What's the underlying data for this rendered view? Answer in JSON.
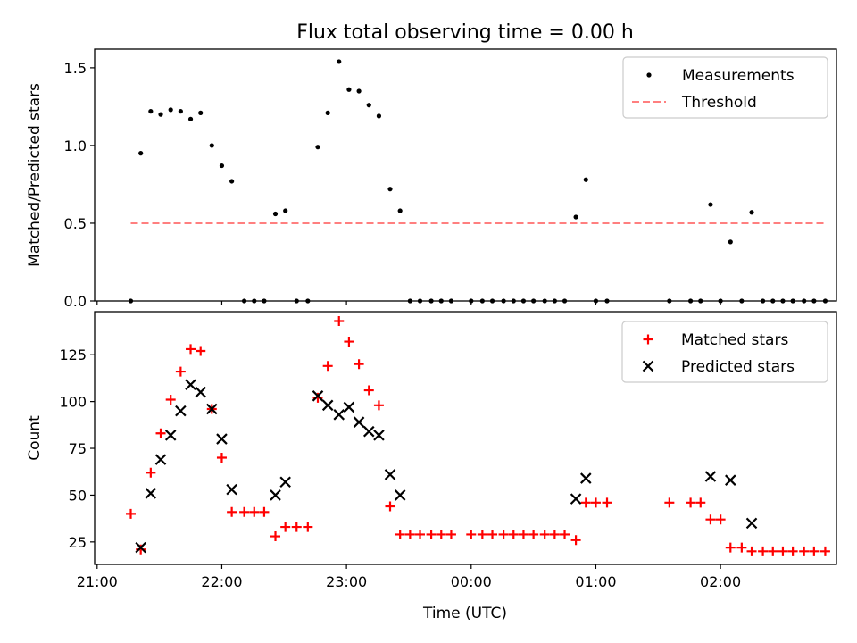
{
  "figure": {
    "title": "Flux total observing time = 0.00 h",
    "xlabel": "Time (UTC)"
  },
  "colors": {
    "measurement": "#000000",
    "threshold": "#ff7f7f",
    "matched": "#ff0000",
    "predicted": "#000000",
    "axes": "#000000",
    "legend_border": "#cccccc"
  },
  "chart_data": [
    {
      "type": "scatter",
      "title": "Flux total observing time = 0.00 h",
      "ylabel": "Matched/Predicted stars",
      "xlabel": "",
      "x_unit": "hours after 21:00 UTC",
      "xlim": [
        -0.02,
        5.93
      ],
      "ylim": [
        0,
        1.62
      ],
      "x_ticks": [
        0,
        1,
        2,
        3,
        4,
        5
      ],
      "x_ticklabels": [
        "21:00",
        "22:00",
        "23:00",
        "00:00",
        "01:00",
        "02:00"
      ],
      "y_ticks": [
        0.0,
        0.5,
        1.0,
        1.5
      ],
      "y_ticklabels": [
        "0.0",
        "0.5",
        "1.0",
        "1.5"
      ],
      "grid": false,
      "legend_position": "top-right",
      "series": [
        {
          "name": "Measurements",
          "marker": "dot",
          "points": [
            [
              0.27,
              0.0
            ],
            [
              0.35,
              0.95
            ],
            [
              0.43,
              1.22
            ],
            [
              0.51,
              1.2
            ],
            [
              0.59,
              1.23
            ],
            [
              0.67,
              1.22
            ],
            [
              0.75,
              1.17
            ],
            [
              0.83,
              1.21
            ],
            [
              0.92,
              1.0
            ],
            [
              1.0,
              0.87
            ],
            [
              1.08,
              0.77
            ],
            [
              1.18,
              0.0
            ],
            [
              1.26,
              0.0
            ],
            [
              1.34,
              0.0
            ],
            [
              1.43,
              0.56
            ],
            [
              1.51,
              0.58
            ],
            [
              1.6,
              0.0
            ],
            [
              1.69,
              0.0
            ],
            [
              1.77,
              0.99
            ],
            [
              1.85,
              1.21
            ],
            [
              1.94,
              1.54
            ],
            [
              2.02,
              1.36
            ],
            [
              2.1,
              1.35
            ],
            [
              2.18,
              1.26
            ],
            [
              2.26,
              1.19
            ],
            [
              2.35,
              0.72
            ],
            [
              2.43,
              0.58
            ],
            [
              2.51,
              0.0
            ],
            [
              2.59,
              0.0
            ],
            [
              2.68,
              0.0
            ],
            [
              2.76,
              0.0
            ],
            [
              2.84,
              0.0
            ],
            [
              3.0,
              0.0
            ],
            [
              3.09,
              0.0
            ],
            [
              3.17,
              0.0
            ],
            [
              3.26,
              0.0
            ],
            [
              3.34,
              0.0
            ],
            [
              3.42,
              0.0
            ],
            [
              3.5,
              0.0
            ],
            [
              3.59,
              0.0
            ],
            [
              3.67,
              0.0
            ],
            [
              3.75,
              0.0
            ],
            [
              3.84,
              0.54
            ],
            [
              3.92,
              0.78
            ],
            [
              4.0,
              0.0
            ],
            [
              4.09,
              0.0
            ],
            [
              4.59,
              0.0
            ],
            [
              4.76,
              0.0
            ],
            [
              4.84,
              0.0
            ],
            [
              4.92,
              0.62
            ],
            [
              5.0,
              0.0
            ],
            [
              5.08,
              0.38
            ],
            [
              5.17,
              0.0
            ],
            [
              5.25,
              0.57
            ],
            [
              5.34,
              0.0
            ],
            [
              5.42,
              0.0
            ],
            [
              5.5,
              0.0
            ],
            [
              5.58,
              0.0
            ],
            [
              5.67,
              0.0
            ],
            [
              5.75,
              0.0
            ],
            [
              5.84,
              0.0
            ]
          ]
        },
        {
          "name": "Threshold",
          "style": "dashed-line",
          "points": [
            [
              0.27,
              0.5
            ],
            [
              5.84,
              0.5
            ]
          ]
        }
      ]
    },
    {
      "type": "scatter",
      "title": "",
      "ylabel": "Count",
      "xlabel": "Time (UTC)",
      "x_unit": "hours after 21:00 UTC",
      "xlim": [
        -0.02,
        5.93
      ],
      "ylim": [
        13,
        148
      ],
      "x_ticks": [
        0,
        1,
        2,
        3,
        4,
        5
      ],
      "x_ticklabels": [
        "21:00",
        "22:00",
        "23:00",
        "00:00",
        "01:00",
        "02:00"
      ],
      "y_ticks": [
        25,
        50,
        75,
        100,
        125
      ],
      "y_ticklabels": [
        "25",
        "50",
        "75",
        "100",
        "125"
      ],
      "grid": false,
      "legend_position": "top-right",
      "series": [
        {
          "name": "Matched stars",
          "marker": "plus",
          "points": [
            [
              0.27,
              40
            ],
            [
              0.35,
              21
            ],
            [
              0.43,
              62
            ],
            [
              0.51,
              83
            ],
            [
              0.59,
              101
            ],
            [
              0.67,
              116
            ],
            [
              0.75,
              128
            ],
            [
              0.83,
              127
            ],
            [
              0.92,
              96
            ],
            [
              1.0,
              70
            ],
            [
              1.08,
              41
            ],
            [
              1.18,
              41
            ],
            [
              1.26,
              41
            ],
            [
              1.34,
              41
            ],
            [
              1.43,
              28
            ],
            [
              1.51,
              33
            ],
            [
              1.6,
              33
            ],
            [
              1.69,
              33
            ],
            [
              1.77,
              102
            ],
            [
              1.85,
              119
            ],
            [
              1.94,
              143
            ],
            [
              2.02,
              132
            ],
            [
              2.1,
              120
            ],
            [
              2.18,
              106
            ],
            [
              2.26,
              98
            ],
            [
              2.35,
              44
            ],
            [
              2.43,
              29
            ],
            [
              2.51,
              29
            ],
            [
              2.59,
              29
            ],
            [
              2.68,
              29
            ],
            [
              2.76,
              29
            ],
            [
              2.84,
              29
            ],
            [
              3.0,
              29
            ],
            [
              3.09,
              29
            ],
            [
              3.17,
              29
            ],
            [
              3.26,
              29
            ],
            [
              3.34,
              29
            ],
            [
              3.42,
              29
            ],
            [
              3.5,
              29
            ],
            [
              3.59,
              29
            ],
            [
              3.67,
              29
            ],
            [
              3.75,
              29
            ],
            [
              3.84,
              26
            ],
            [
              3.92,
              46
            ],
            [
              4.0,
              46
            ],
            [
              4.09,
              46
            ],
            [
              4.59,
              46
            ],
            [
              4.76,
              46
            ],
            [
              4.84,
              46
            ],
            [
              4.92,
              37
            ],
            [
              5.0,
              37
            ],
            [
              5.08,
              22
            ],
            [
              5.17,
              22
            ],
            [
              5.25,
              20
            ],
            [
              5.34,
              20
            ],
            [
              5.42,
              20
            ],
            [
              5.5,
              20
            ],
            [
              5.58,
              20
            ],
            [
              5.67,
              20
            ],
            [
              5.75,
              20
            ],
            [
              5.84,
              20
            ]
          ]
        },
        {
          "name": "Predicted stars",
          "marker": "cross",
          "points": [
            [
              0.35,
              22
            ],
            [
              0.43,
              51
            ],
            [
              0.51,
              69
            ],
            [
              0.59,
              82
            ],
            [
              0.67,
              95
            ],
            [
              0.75,
              109
            ],
            [
              0.83,
              105
            ],
            [
              0.92,
              96
            ],
            [
              1.0,
              80
            ],
            [
              1.08,
              53
            ],
            [
              1.43,
              50
            ],
            [
              1.51,
              57
            ],
            [
              1.77,
              103
            ],
            [
              1.85,
              98
            ],
            [
              1.94,
              93
            ],
            [
              2.02,
              97
            ],
            [
              2.1,
              89
            ],
            [
              2.18,
              84
            ],
            [
              2.26,
              82
            ],
            [
              2.35,
              61
            ],
            [
              2.43,
              50
            ],
            [
              3.84,
              48
            ],
            [
              3.92,
              59
            ],
            [
              4.92,
              60
            ],
            [
              5.08,
              58
            ],
            [
              5.25,
              35
            ]
          ]
        }
      ]
    }
  ]
}
